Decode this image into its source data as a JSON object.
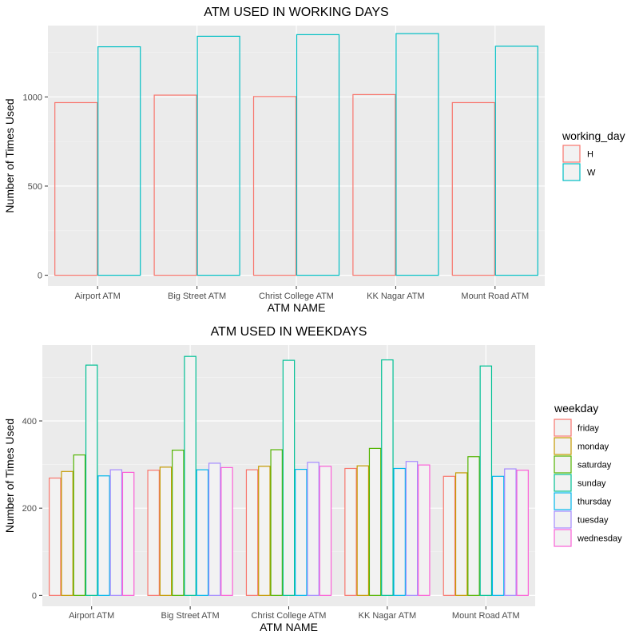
{
  "chart_data": [
    {
      "type": "bar",
      "title": "ATM USED IN WORKING DAYS",
      "xlabel": "ATM NAME",
      "ylabel": "Number of Times Used",
      "categories": [
        "Airport ATM",
        "Big Street ATM",
        "Christ College ATM",
        "KK Nagar ATM",
        "Mount Road ATM"
      ],
      "series": [
        {
          "name": "H",
          "color": "#F8766D",
          "values": [
            968,
            1010,
            1002,
            1013,
            968
          ]
        },
        {
          "name": "W",
          "color": "#00BFC4",
          "values": [
            1281,
            1340,
            1349,
            1355,
            1284
          ]
        }
      ],
      "ylim": [
        -60,
        1400
      ],
      "yticks": [
        0,
        500,
        1000
      ],
      "legend_title": "working_day",
      "legend_position": "right",
      "grid": true,
      "bars_outlined": true
    },
    {
      "type": "bar",
      "title": "ATM USED IN WEEKDAYS",
      "xlabel": "ATM NAME",
      "ylabel": "Number of Times Used",
      "categories": [
        "Airport ATM",
        "Big Street ATM",
        "Christ College ATM",
        "KK Nagar ATM",
        "Mount Road ATM"
      ],
      "series": [
        {
          "name": "friday",
          "color": "#F8766D",
          "values": [
            269,
            287,
            288,
            291,
            273
          ]
        },
        {
          "name": "monday",
          "color": "#C49A00",
          "values": [
            284,
            294,
            296,
            297,
            281
          ]
        },
        {
          "name": "saturday",
          "color": "#53B400",
          "values": [
            322,
            333,
            334,
            337,
            318
          ]
        },
        {
          "name": "sunday",
          "color": "#00C094",
          "values": [
            528,
            548,
            539,
            540,
            526
          ]
        },
        {
          "name": "thursday",
          "color": "#00B6EB",
          "values": [
            274,
            288,
            289,
            291,
            273
          ]
        },
        {
          "name": "tuesday",
          "color": "#A58AFF",
          "values": [
            288,
            303,
            305,
            307,
            290
          ]
        },
        {
          "name": "wednesday",
          "color": "#FB61D7",
          "values": [
            282,
            293,
            296,
            299,
            287
          ]
        }
      ],
      "ylim": [
        -25,
        574
      ],
      "yticks": [
        0,
        200,
        400
      ],
      "legend_title": "weekday",
      "legend_position": "right",
      "grid": true,
      "bars_outlined": true
    }
  ]
}
